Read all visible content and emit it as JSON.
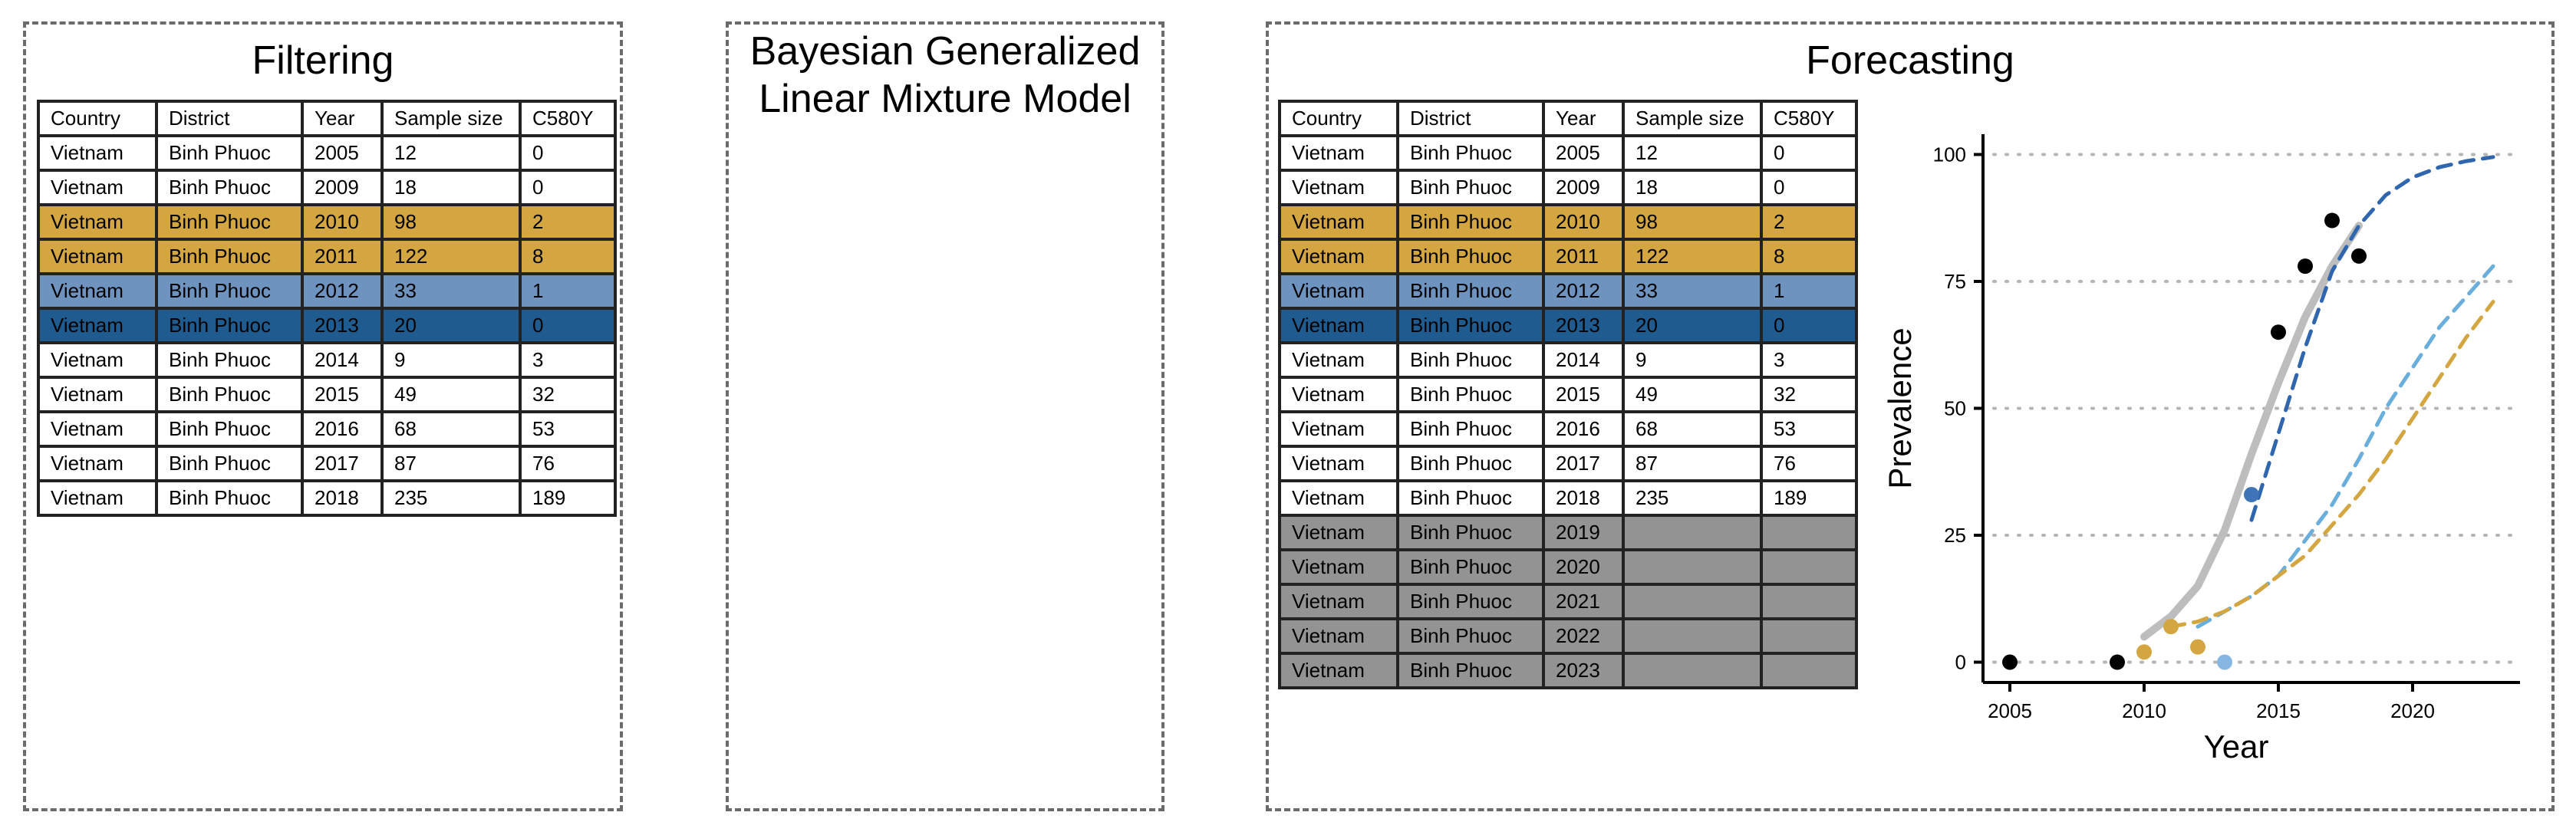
{
  "panels": {
    "filtering_title": "Filtering",
    "model_title": "Bayesian Generalized\nLinear Mixture Model",
    "forecasting_title": "Forecasting"
  },
  "colors": {
    "gold": "#d4a641",
    "light_blue_row": "#6f93bf",
    "dark_blue_row": "#1f5b8e",
    "gray_row": "#939393",
    "trend_gray": "#bdbdbd",
    "dash_dark_blue": "#2f66ad",
    "dash_light_blue": "#6aaedc",
    "dash_gold": "#d4a641",
    "point_black": "#000000",
    "point_blue": "#3f75b8",
    "point_light_blue": "#86b7e3"
  },
  "table_columns": [
    "Country",
    "District",
    "Year",
    "Sample size",
    "C580Y"
  ],
  "filter_table": [
    {
      "style": "white",
      "cells": [
        "Vietnam",
        "Binh Phuoc",
        "2005",
        "12",
        "0"
      ]
    },
    {
      "style": "white",
      "cells": [
        "Vietnam",
        "Binh Phuoc",
        "2009",
        "18",
        "0"
      ]
    },
    {
      "style": "gold",
      "cells": [
        "Vietnam",
        "Binh Phuoc",
        "2010",
        "98",
        "2"
      ]
    },
    {
      "style": "gold",
      "cells": [
        "Vietnam",
        "Binh Phuoc",
        "2011",
        "122",
        "8"
      ]
    },
    {
      "style": "light",
      "cells": [
        "Vietnam",
        "Binh Phuoc",
        "2012",
        "33",
        "1"
      ]
    },
    {
      "style": "dark",
      "cells": [
        "Vietnam",
        "Binh Phuoc",
        "2013",
        "20",
        "0"
      ]
    },
    {
      "style": "white",
      "cells": [
        "Vietnam",
        "Binh Phuoc",
        "2014",
        "9",
        "3"
      ]
    },
    {
      "style": "white",
      "cells": [
        "Vietnam",
        "Binh Phuoc",
        "2015",
        "49",
        "32"
      ]
    },
    {
      "style": "white",
      "cells": [
        "Vietnam",
        "Binh Phuoc",
        "2016",
        "68",
        "53"
      ]
    },
    {
      "style": "white",
      "cells": [
        "Vietnam",
        "Binh Phuoc",
        "2017",
        "87",
        "76"
      ]
    },
    {
      "style": "white",
      "cells": [
        "Vietnam",
        "Binh Phuoc",
        "2018",
        "235",
        "189"
      ]
    }
  ],
  "forecast_table": [
    {
      "style": "white",
      "cells": [
        "Vietnam",
        "Binh Phuoc",
        "2005",
        "12",
        "0"
      ]
    },
    {
      "style": "white",
      "cells": [
        "Vietnam",
        "Binh Phuoc",
        "2009",
        "18",
        "0"
      ]
    },
    {
      "style": "gold",
      "cells": [
        "Vietnam",
        "Binh Phuoc",
        "2010",
        "98",
        "2"
      ]
    },
    {
      "style": "gold",
      "cells": [
        "Vietnam",
        "Binh Phuoc",
        "2011",
        "122",
        "8"
      ]
    },
    {
      "style": "light",
      "cells": [
        "Vietnam",
        "Binh Phuoc",
        "2012",
        "33",
        "1"
      ]
    },
    {
      "style": "dark",
      "cells": [
        "Vietnam",
        "Binh Phuoc",
        "2013",
        "20",
        "0"
      ]
    },
    {
      "style": "white",
      "cells": [
        "Vietnam",
        "Binh Phuoc",
        "2014",
        "9",
        "3"
      ]
    },
    {
      "style": "white",
      "cells": [
        "Vietnam",
        "Binh Phuoc",
        "2015",
        "49",
        "32"
      ]
    },
    {
      "style": "white",
      "cells": [
        "Vietnam",
        "Binh Phuoc",
        "2016",
        "68",
        "53"
      ]
    },
    {
      "style": "white",
      "cells": [
        "Vietnam",
        "Binh Phuoc",
        "2017",
        "87",
        "76"
      ]
    },
    {
      "style": "white",
      "cells": [
        "Vietnam",
        "Binh Phuoc",
        "2018",
        "235",
        "189"
      ]
    },
    {
      "style": "gray",
      "cells": [
        "Vietnam",
        "Binh Phuoc",
        "2019",
        "",
        ""
      ]
    },
    {
      "style": "gray",
      "cells": [
        "Vietnam",
        "Binh Phuoc",
        "2020",
        "",
        ""
      ]
    },
    {
      "style": "gray",
      "cells": [
        "Vietnam",
        "Binh Phuoc",
        "2021",
        "",
        ""
      ]
    },
    {
      "style": "gray",
      "cells": [
        "Vietnam",
        "Binh Phuoc",
        "2022",
        "",
        ""
      ]
    },
    {
      "style": "gray",
      "cells": [
        "Vietnam",
        "Binh Phuoc",
        "2023",
        "",
        ""
      ]
    }
  ],
  "chart_data": {
    "type": "scatter",
    "xlabel": "Year",
    "ylabel": "Prevalence",
    "xlim": [
      2004,
      2024
    ],
    "ylim": [
      -4,
      104
    ],
    "x_ticks": [
      2005,
      2010,
      2015,
      2020
    ],
    "y_ticks": [
      0,
      25,
      50,
      75,
      100
    ],
    "grid": "horizontal dotted",
    "points": [
      {
        "x": 2005,
        "y": 0,
        "color": "#000000"
      },
      {
        "x": 2009,
        "y": 0,
        "color": "#000000"
      },
      {
        "x": 2010,
        "y": 2,
        "color": "#d4a641"
      },
      {
        "x": 2011,
        "y": 7,
        "color": "#d4a641"
      },
      {
        "x": 2012,
        "y": 3,
        "color": "#d4a641"
      },
      {
        "x": 2013,
        "y": 0,
        "color": "#86b7e3"
      },
      {
        "x": 2014,
        "y": 33,
        "color": "#3f75b8"
      },
      {
        "x": 2015,
        "y": 65,
        "color": "#000000"
      },
      {
        "x": 2016,
        "y": 78,
        "color": "#000000"
      },
      {
        "x": 2017,
        "y": 87,
        "color": "#000000"
      },
      {
        "x": 2018,
        "y": 80,
        "color": "#000000"
      }
    ],
    "lines": [
      {
        "style": "solid",
        "color": "#bdbdbd",
        "x": [
          2010,
          2011,
          2012,
          2013,
          2014,
          2015,
          2016,
          2017,
          2018
        ],
        "y": [
          5,
          9,
          15,
          26,
          41,
          55,
          68,
          78,
          86
        ]
      },
      {
        "style": "dashed",
        "color": "#2f66ad",
        "x": [
          2014,
          2015,
          2016,
          2017,
          2018,
          2019,
          2020,
          2021,
          2022,
          2023
        ],
        "y": [
          28,
          45,
          62,
          77,
          86,
          92,
          95.5,
          97.5,
          98.7,
          99.5
        ]
      },
      {
        "style": "dashed",
        "color": "#6aaedc",
        "x": [
          2012,
          2013,
          2014,
          2015,
          2016,
          2017,
          2018,
          2019,
          2020,
          2021,
          2022,
          2023
        ],
        "y": [
          7,
          10,
          13,
          17,
          24,
          31,
          40,
          50,
          58,
          66,
          72,
          78
        ]
      },
      {
        "style": "dashed",
        "color": "#d4a641",
        "x": [
          2011,
          2012,
          2013,
          2014,
          2015,
          2016,
          2017,
          2018,
          2019,
          2020,
          2021,
          2022,
          2023
        ],
        "y": [
          7,
          8,
          10,
          13,
          17,
          21,
          27,
          33,
          40,
          48,
          56,
          64,
          71
        ]
      }
    ]
  }
}
